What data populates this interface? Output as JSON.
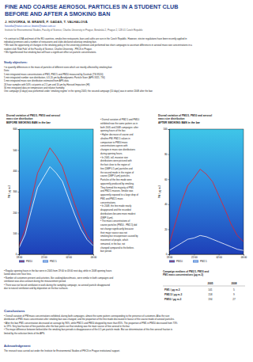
{
  "header": {
    "title_lines": [
      "FINE AND  COARSE AEROSOL PARTICLES IN A STUDENT CLUB",
      "BEFORE AND AFTER A SMOKING BAN"
    ],
    "authors": "J. HOVORKA, M. BRANIŠ, P. GADAS, T. VALHALOVÁ",
    "email": "hovorka@natur.cuni.cz, branis@natur.cuni.cz",
    "affiliation": "Institute for Environmental Studies, Faculty of Science, Charles University in Prague, Benátská 2, Prague 2, 128 01 Czech Republic"
  },
  "intro": [
    "• In contrast to USA and most of the EU countries, smoke-free restaurants, bars and cafés are rare in the Czech Republic. However, stricter regulations have been recently applied in",
    "individual premises and a number of restaurants and clubs declared voluntary smoking ban.",
    "• We took the opportunity of changes in the smoking policy in the university premises and performed two short campaigns to ascertain differences in aerosol mass size concentrations in a",
    "student club 'Klub Fakt' of the Faculty of Science, Charles University - PECS in Prague.",
    "• We hypothesised that smoking ban will have a significant effect on particle concentrations."
  ],
  "objectives": {
    "heading": "Study objectives:",
    "lines": [
      "• to quantify differences in the mass of particles of different sizes which are mostly affected by smoking ban",
      "Data:",
      "5 min integrated mass concentrations of PM1, PM2.5 and PM10 measured by Dusttrak (TSI 8520)",
      "5 min integrated number size distribution, 0.3-20 µm by Aerodynamic Particle Sizer (APS 3321, TSI)",
      "5 min integrated mass size distribution estimated from APS data",
      "24 hour samples with 50% cut points at 2.5 µm and 10 µm by Harvard Impactors (HI)",
      "30 min integrated data on temperature and relative humidity",
      "One campaign (4 days) was performed under 'smoking regime' in the spring 2005; the second campaign (10 days) was in winter 2008 after the ban"
    ]
  },
  "chart_data": [
    {
      "type": "line",
      "title": "Diurnal variation of PM2.5, PM10 and aerosol mass size distribution",
      "subtitle": "BEFORE SMOKING BAN in the bar",
      "y_label": "PM / µg m-3",
      "x": [
        18,
        19,
        20,
        21,
        22,
        23,
        24,
        25,
        26,
        27,
        28,
        29,
        30
      ],
      "xlim": [
        18,
        30
      ],
      "xticks": [
        {
          "value": 18,
          "label": "18:00"
        },
        {
          "value": 22,
          "label": "22:00"
        },
        {
          "value": 26,
          "label": "02:00"
        },
        {
          "value": 30,
          "label": "06:00"
        }
      ],
      "ylim": [
        0,
        600
      ],
      "yticks": [
        0,
        100,
        200,
        300,
        400,
        500,
        600
      ],
      "legend": "bottom",
      "series": [
        {
          "name": "PM10",
          "color": "#e8202a",
          "values": [
            40,
            120,
            260,
            390,
            450,
            510,
            470,
            420,
            330,
            240,
            160,
            90,
            50
          ]
        },
        {
          "name": "PM2.5",
          "color": "#ffffff",
          "values": [
            30,
            95,
            210,
            320,
            370,
            420,
            390,
            350,
            270,
            190,
            120,
            70,
            40
          ]
        }
      ]
    },
    {
      "type": "line",
      "title": "Diurnal variation of PM2.5, PM10 and aerosol mass size distribution",
      "subtitle": "AFTER SMOKING BAN in the bar",
      "y_label": "PM / µg m-3",
      "x": [
        18,
        19,
        20,
        21,
        22,
        23,
        24,
        25,
        26,
        27,
        28,
        29,
        30
      ],
      "xlim": [
        18,
        30
      ],
      "xticks": [
        {
          "value": 18,
          "label": "18:00"
        },
        {
          "value": 22,
          "label": "22:00"
        },
        {
          "value": 26,
          "label": "02:00"
        },
        {
          "value": 30,
          "label": "06:00"
        }
      ],
      "ylim": [
        0,
        100
      ],
      "yticks": [
        0,
        20,
        40,
        60,
        80,
        100
      ],
      "legend": "bottom",
      "series": [
        {
          "name": "PM10",
          "color": "#e8202a",
          "values": [
            8,
            25,
            42,
            55,
            61,
            68,
            64,
            58,
            47,
            36,
            24,
            15,
            10
          ]
        },
        {
          "name": "PM2.5",
          "color": "#ffffff",
          "values": [
            3,
            6,
            9,
            12,
            13,
            15,
            14,
            12,
            10,
            8,
            6,
            4,
            3
          ]
        }
      ]
    }
  ],
  "middle_text": [
    "• Diurnal variation of PM2.5 and PM10",
    "exhibited now the same pattern as in",
    "both 2005 and 2008 campaigns: after",
    "opening hours of the bar.",
    "• Higher decrease of coarse and",
    "ultrafine PM; PM2.5 values in",
    "comparison to PM10 mass",
    "concentrations agrees with",
    "changes in mass size distributions",
    "during opening hours.",
    "• In 2005, tall, massive size",
    "distributions were pictured with",
    "the foot close to the region of",
    "fine (DMP 0.5 µm) particles and",
    "the second mode in the region of",
    "coarse (DMP 4 µm) particles.",
    "Particles of the fine mode were",
    "apparently produced by smoking.",
    "They formed the majority of PM1",
    "and PM2.5 masses. Smoke was",
    "apparently exposed to a large drop of",
    "PM1 and PM2.5 mass",
    "concentrations.",
    "• In 2008, the fine mode nearly",
    "disappeared and the recorded",
    "distributions became more modest",
    "(DMP 4 µm).",
    "• The mass concentrations of",
    "coarse particles (PM10 - PM2.5) did",
    "not change significantly because",
    "their major source was not",
    "smoking but resuspension caused by",
    "movement of people, which",
    "remained, in the bar, not",
    "changed compared to the before-",
    "ban period."
  ],
  "bottom_left": [
    "• Regular opening hours in the bar were in 2005 from 19:00 to 03:00 next day, while in 2008 opening hours",
    "lasted about one hour less.",
    "• Number of customers present and activities, like cooking/dance/music, were similar in both campaigns and",
    "ventilation was also constant during the measurement period.",
    "• There was not forced ventilation in work during the sampling campaign, so aerosol particle disappeared",
    "due to natural ventilation and by deposition on the bar surfaces."
  ],
  "table": {
    "caption": [
      "Campaign medians of PM2.5, PM10 and",
      "PM1 mass concentrations (µg m-3)"
    ],
    "header": [
      "",
      "2005",
      "2008"
    ],
    "rows": [
      [
        "PM1 / µg m-3",
        "141",
        "5"
      ],
      [
        "PM2.5 / µg m-3",
        "158",
        "9"
      ],
      [
        "PM10 / µg m-3",
        "194",
        "27"
      ]
    ]
  },
  "conclusions": {
    "heading": "Conclusions",
    "lines": [
      "• Overall variation of PM mass concentrations exhibited, during both campaigns, almost the same pattern corresponding to the presence of customers. Also the size",
      "distribution of PM1 mass concentration after smoking ban was changed, and the proportion of the fine mode decreased in favour of the coarse mode of aerosol particles.",
      "• After the ban PM1 concentration decreased on average by 96%, while PM2.5 and PM10 dropped by more than 85%. The proportion of PM1 in PM10 decreased from 73%",
      "to 19%. Very low fraction of fine particles after the ban points out that smoking was the main source of fine aerosol in the bar.",
      "• The major difference between before/after the smoking ban periods is disappearance of the 0.5 µm particle mode. But our determination of this fine aerosol fraction is",
      "limited by the selection limits of the APS."
    ]
  },
  "acknowledgement": {
    "heading": "Acknowledgement",
    "lines": [
      "The research was carried out under the Institute for Environmental Studies of PECS in Prague institutional support."
    ]
  }
}
